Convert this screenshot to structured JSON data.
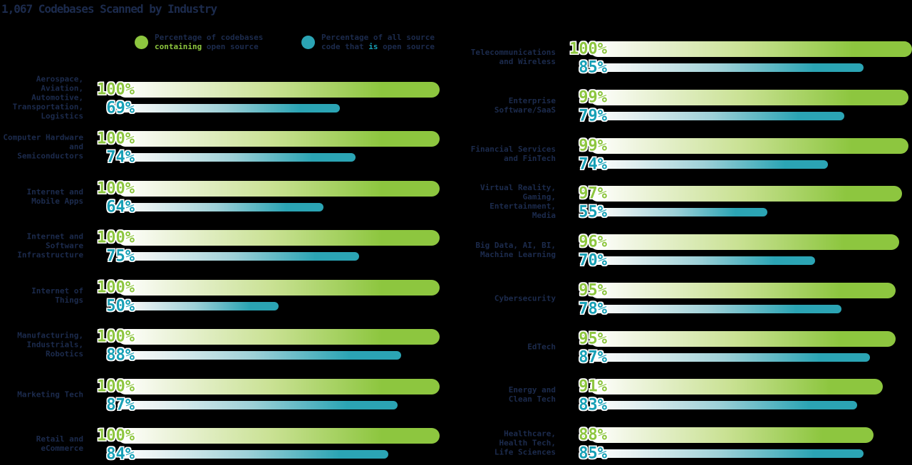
{
  "title": "1,067 Codebases Scanned by Industry",
  "legend": {
    "position": "top",
    "items": [
      {
        "name": "containing-open-source",
        "dot_color": "#8dc63f",
        "lines": [
          [
            {
              "t": "Percentage of codebases"
            }
          ],
          [
            {
              "t": "containing",
              "b": true,
              "c": "#8dc63f"
            },
            {
              "t": " open source"
            }
          ]
        ]
      },
      {
        "name": "is-open-source",
        "dot_color": "#2ba4b4",
        "lines": [
          [
            {
              "t": "Percentage of all source"
            }
          ],
          [
            {
              "t": "code that "
            },
            {
              "t": "is",
              "b": true,
              "c": "#17a0b6"
            },
            {
              "t": " open source"
            }
          ]
        ]
      }
    ]
  },
  "chart_data": {
    "type": "bar",
    "orientation": "horizontal",
    "title": "1,067 Codebases Scanned by Industry",
    "unit": "%",
    "xlim": [
      0,
      100
    ],
    "grid": false,
    "legend_position": "top",
    "series": [
      {
        "name": "Percentage of codebases containing open source",
        "color": "#8dc63f"
      },
      {
        "name": "Percentage of all source code that is open source",
        "color": "#2ba4b4"
      }
    ],
    "columns": [
      {
        "rows": [
          {
            "label_lines": [
              "Aerospace,",
              "Aviation,",
              "Automotive,",
              "Transportation,",
              "Logistics"
            ],
            "containing": 100,
            "is_open_source": 69
          },
          {
            "label_lines": [
              "Computer Hardware",
              "and Semiconductors"
            ],
            "containing": 100,
            "is_open_source": 74
          },
          {
            "label_lines": [
              "Internet and",
              "Mobile Apps"
            ],
            "containing": 100,
            "is_open_source": 64
          },
          {
            "label_lines": [
              "Internet and",
              "Software",
              "Infrastructure"
            ],
            "containing": 100,
            "is_open_source": 75
          },
          {
            "label_lines": [
              "Internet of Things"
            ],
            "containing": 100,
            "is_open_source": 50
          },
          {
            "label_lines": [
              "Manufacturing,",
              "Industrials,",
              "Robotics"
            ],
            "containing": 100,
            "is_open_source": 88
          },
          {
            "label_lines": [
              "Marketing Tech"
            ],
            "containing": 100,
            "is_open_source": 87
          },
          {
            "label_lines": [
              "Retail and",
              "eCommerce"
            ],
            "containing": 100,
            "is_open_source": 84
          }
        ]
      },
      {
        "rows": [
          {
            "label_lines": [
              "Telecommunications",
              "and Wireless"
            ],
            "containing": 100,
            "is_open_source": 85
          },
          {
            "label_lines": [
              "Enterprise",
              "Software/SaaS"
            ],
            "containing": 99,
            "is_open_source": 79
          },
          {
            "label_lines": [
              "Financial Services",
              "and FinTech"
            ],
            "containing": 99,
            "is_open_source": 74
          },
          {
            "label_lines": [
              "Virtual Reality,",
              "Gaming,",
              "Entertainment,",
              "Media"
            ],
            "containing": 97,
            "is_open_source": 55
          },
          {
            "label_lines": [
              "Big Data, AI, BI,",
              "Machine Learning"
            ],
            "containing": 96,
            "is_open_source": 70
          },
          {
            "label_lines": [
              "Cybersecurity"
            ],
            "containing": 95,
            "is_open_source": 78
          },
          {
            "label_lines": [
              "EdTech"
            ],
            "containing": 95,
            "is_open_source": 87
          },
          {
            "label_lines": [
              "Energy and",
              "Clean Tech"
            ],
            "containing": 91,
            "is_open_source": 83
          },
          {
            "label_lines": [
              "Healthcare,",
              "Health Tech,",
              "Life Sciences"
            ],
            "containing": 88,
            "is_open_source": 85
          }
        ]
      }
    ]
  }
}
